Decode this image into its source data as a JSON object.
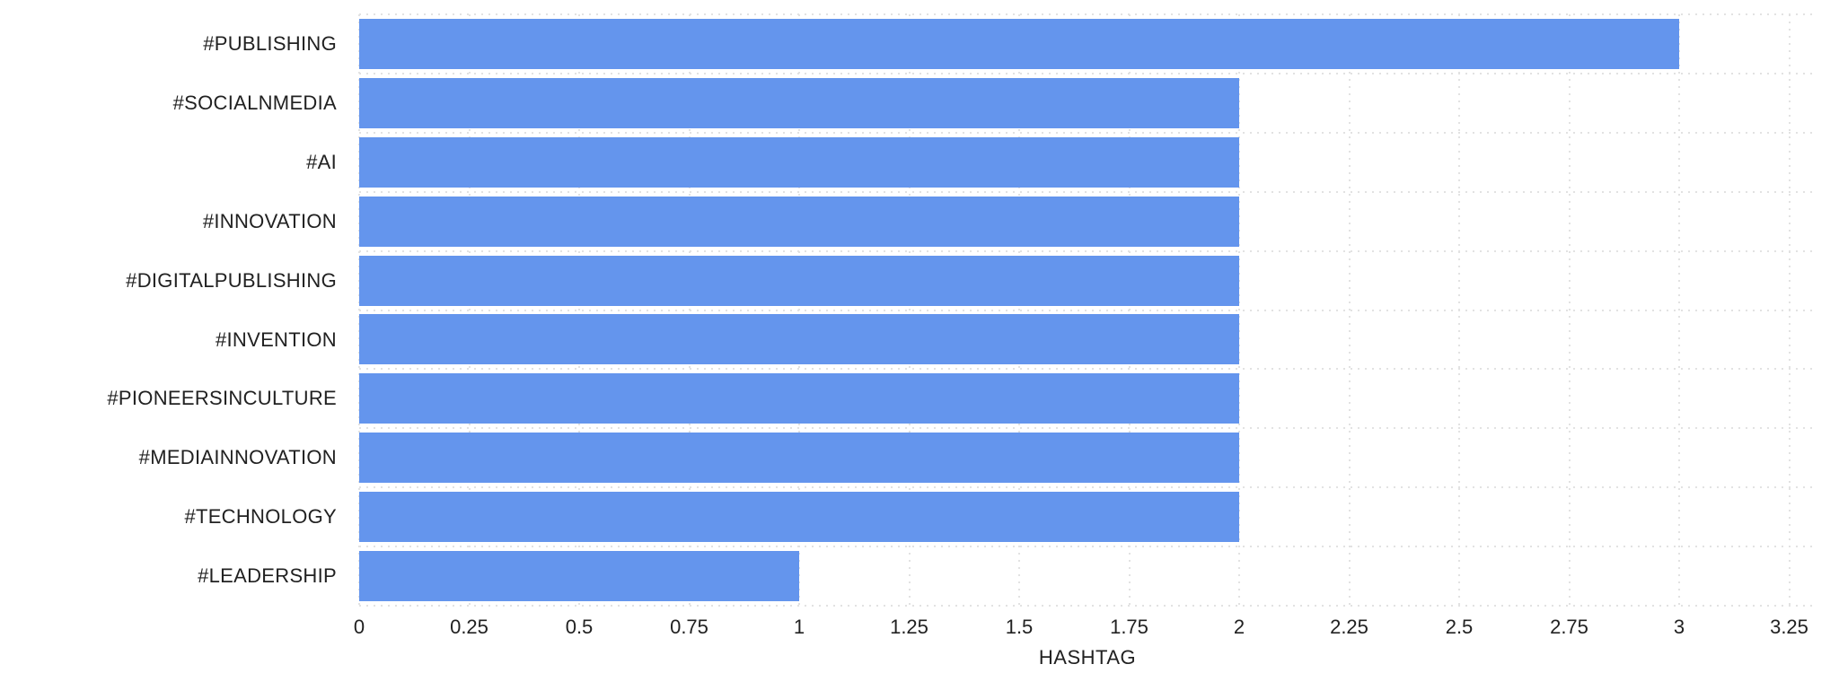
{
  "chart_data": {
    "type": "bar",
    "orientation": "horizontal",
    "title": "",
    "xlabel": "HASHTAG",
    "ylabel": "",
    "categories": [
      "#PUBLISHING",
      "#SOCIALNMEDIA",
      "#AI",
      "#INNOVATION",
      "#DIGITALPUBLISHING",
      "#INVENTION",
      "#PIONEERSINCULTURE",
      "#MEDIAINNOVATION",
      "#TECHNOLOGY",
      "#LEADERSHIP"
    ],
    "values": [
      3,
      2,
      2,
      2,
      2,
      2,
      2,
      2,
      2,
      1
    ],
    "xlim": [
      0,
      3.25
    ],
    "x_ticks": [
      0,
      0.25,
      0.5,
      0.75,
      1,
      1.25,
      1.5,
      1.75,
      2,
      2.25,
      2.5,
      2.75,
      3,
      3.25
    ],
    "x_tick_labels": [
      "0",
      "0.25",
      "0.5",
      "0.75",
      "1",
      "1.25",
      "1.5",
      "1.75",
      "2",
      "2.25",
      "2.5",
      "2.75",
      "3",
      "3.25"
    ],
    "grid": true,
    "gridline_style": "dotted",
    "legend": false,
    "bar_color": "#6495ED",
    "gridline_color": "#e2e2e2",
    "text_color": "#212121",
    "background": "#ffffff"
  }
}
